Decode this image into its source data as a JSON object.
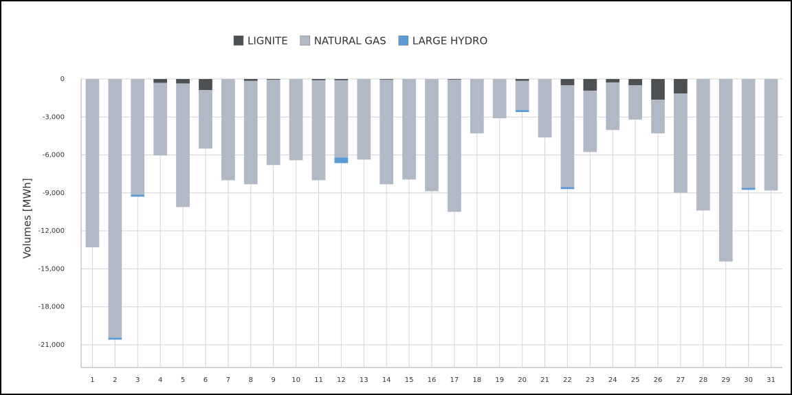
{
  "chart_data": {
    "type": "stacked_bar",
    "y_label": "Volumes [MWh]",
    "categories": [
      "1",
      "2",
      "3",
      "4",
      "5",
      "6",
      "7",
      "8",
      "9",
      "10",
      "11",
      "12",
      "13",
      "14",
      "15",
      "16",
      "17",
      "18",
      "19",
      "20",
      "21",
      "22",
      "23",
      "24",
      "25",
      "26",
      "27",
      "28",
      "29",
      "30",
      "31"
    ],
    "series": [
      {
        "name": "LIGNITE",
        "color": "#4d5154",
        "values": [
          0,
          0,
          0,
          -300,
          -350,
          -870,
          0,
          -150,
          -60,
          0,
          -100,
          -100,
          0,
          -50,
          0,
          0,
          -50,
          0,
          0,
          -150,
          0,
          -490,
          -920,
          -270,
          -490,
          -1630,
          -1140,
          0,
          0,
          0,
          0
        ]
      },
      {
        "name": "NATURAL GAS",
        "color": "#b1b8c6",
        "values": [
          -13300,
          -20450,
          -9150,
          -5740,
          -9770,
          -4630,
          -8000,
          -8170,
          -6740,
          -6420,
          -7900,
          -6100,
          -6370,
          -8270,
          -7940,
          -8870,
          -10450,
          -4300,
          -3100,
          -2300,
          -4620,
          -8050,
          -4850,
          -3760,
          -2720,
          -2670,
          -7840,
          -10390,
          -14420,
          -8600,
          -8810
        ]
      },
      {
        "name": "LARGE HYDRO",
        "color": "#5b9bd5",
        "values": [
          0,
          -150,
          -150,
          0,
          0,
          0,
          0,
          0,
          0,
          0,
          0,
          -450,
          0,
          0,
          0,
          0,
          0,
          0,
          0,
          -160,
          0,
          -160,
          0,
          0,
          0,
          0,
          0,
          0,
          0,
          -160,
          0
        ]
      }
    ],
    "ylim": [
      -22800,
      0
    ],
    "yticks": [
      0,
      {
        "value": -3000,
        "label": "-3,000"
      },
      {
        "value": -6000,
        "label": "-6,000"
      },
      {
        "value": -9000,
        "label": "-9,000"
      },
      {
        "value": -12000,
        "label": "-12,000"
      },
      {
        "value": -15000,
        "label": "-15,000"
      },
      {
        "value": -18000,
        "label": "-18,000"
      },
      {
        "value": -21000,
        "label": "-21,000"
      }
    ],
    "grid": true,
    "legend": "top"
  }
}
